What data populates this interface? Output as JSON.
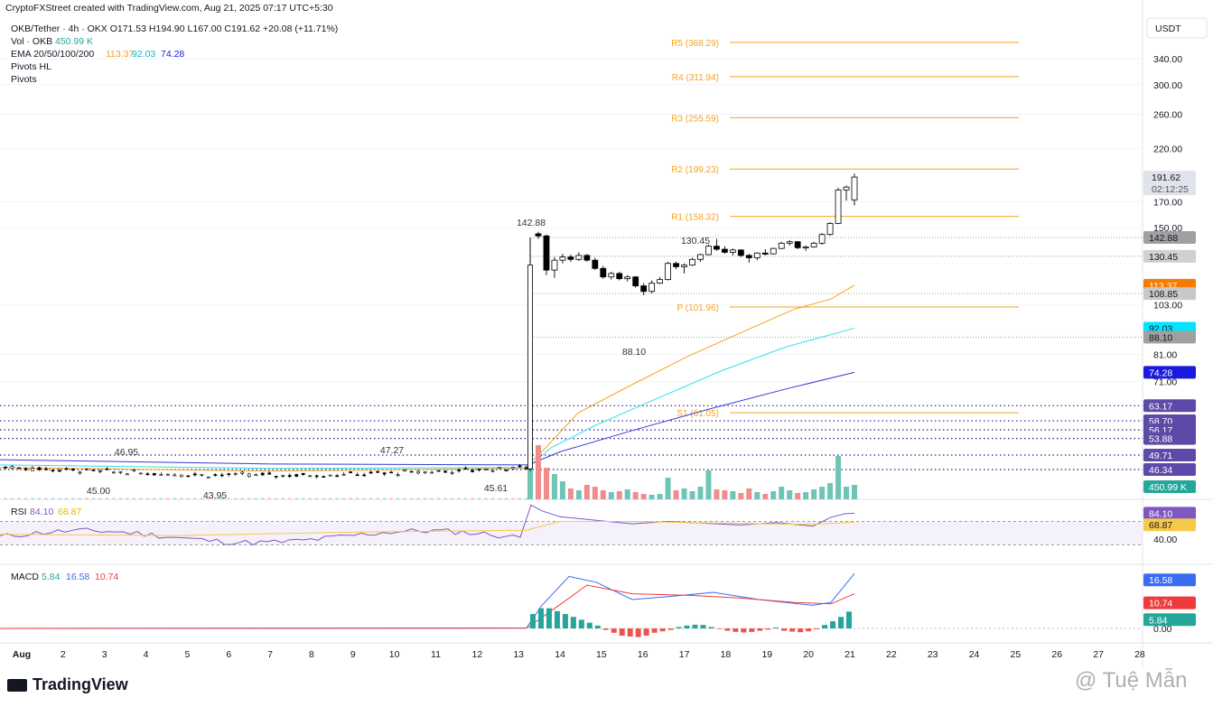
{
  "header": {
    "creator": "CryptoFXStreet created with TradingView.com, Aug 21, 2025 07:17 UTC+5:30",
    "symbol_line": "OKB/Tether · 4h · OKX  O171.53  H194.90  L167.00  C191.62  +20.08 (+11.71%)",
    "vol_label": "Vol · OKB",
    "vol_value": "450.99 K",
    "ema_label": "EMA 20/50/100/200",
    "ema_values": [
      "113.37",
      "92.03",
      "74.28"
    ],
    "pivots_hl": "Pivots HL",
    "pivots": "Pivots"
  },
  "currency": "USDT",
  "colors": {
    "up": "#ffffff",
    "down": "#000000",
    "candle_border": "#000000",
    "ema20": "#f7a21b",
    "ema50": "#2fe0f0",
    "ema100": "#3838d8",
    "pivot": "#f7a21b",
    "vol_up": "#6fc4b6",
    "vol_down": "#f08c8c",
    "rsi": "#7e57c2",
    "rsi_ma": "#f7c948",
    "macd": "#3a6cf0",
    "signal": "#ef3b3b",
    "hist_up": "#26a69a",
    "hist_down": "#ef5350",
    "level_dots": "#2a1a8c"
  },
  "chart_data": {
    "type": "candlestick",
    "price_ticks": [
      "340.00",
      "300.00",
      "260.00",
      "220.00",
      "170.00",
      "150.00",
      "103.00",
      "81.00",
      "71.00",
      "40.00"
    ],
    "pivot_levels": [
      {
        "label": "R5 (368.29)",
        "value": 368.29
      },
      {
        "label": "R4 (311.94)",
        "value": 311.94
      },
      {
        "label": "R3 (255.59)",
        "value": 255.59
      },
      {
        "label": "R2 (199.23)",
        "value": 199.23
      },
      {
        "label": "R1 (158.32)",
        "value": 158.32
      },
      {
        "label": "P (101.96)",
        "value": 101.96
      },
      {
        "label": "S1 (61.05)",
        "value": 61.05
      }
    ],
    "annotations": [
      "142.88",
      "130.45",
      "88.10",
      "46.95",
      "47.27",
      "45.00",
      "43.95",
      "45.61"
    ],
    "price_badges": [
      {
        "value": "191.62",
        "sub": "02:12:25",
        "color": "#e0e3eb",
        "text": "#131722"
      },
      {
        "value": "142.88",
        "color": "#a0a0a0",
        "text": "#131722"
      },
      {
        "value": "130.45",
        "color": "#d0d0d0",
        "text": "#131722"
      },
      {
        "value": "113.37",
        "color": "#f57c00",
        "text": "#ffffff"
      },
      {
        "value": "108.85",
        "color": "#c8c8c8",
        "text": "#131722"
      },
      {
        "value": "92.03",
        "color": "#00e5ff",
        "text": "#131722"
      },
      {
        "value": "88.10",
        "color": "#a0a0a0",
        "text": "#131722"
      },
      {
        "value": "74.28",
        "color": "#1a1adc",
        "text": "#ffffff"
      },
      {
        "value": "63.17",
        "color": "#5d4aa8",
        "text": "#ffffff"
      },
      {
        "value": "58.70",
        "color": "#5d4aa8",
        "text": "#ffffff"
      },
      {
        "value": "56.17",
        "color": "#5d4aa8",
        "text": "#ffffff"
      },
      {
        "value": "53.88",
        "color": "#5d4aa8",
        "text": "#ffffff"
      },
      {
        "value": "49.71",
        "color": "#5d4aa8",
        "text": "#ffffff"
      },
      {
        "value": "46.34",
        "color": "#5d4aa8",
        "text": "#ffffff"
      },
      {
        "value": "450.99 K",
        "color": "#26a69a",
        "text": "#ffffff"
      }
    ],
    "x_labels": [
      "Aug",
      "2",
      "3",
      "4",
      "5",
      "6",
      "7",
      "8",
      "9",
      "10",
      "11",
      "12",
      "13",
      "14",
      "15",
      "16",
      "17",
      "18",
      "19",
      "20",
      "21",
      "22",
      "23",
      "24",
      "25",
      "26",
      "27",
      "28"
    ],
    "candles": [
      [
        145.5,
        147.0,
        142.0,
        144.0
      ],
      [
        144.0,
        145.0,
        119.0,
        122.0
      ],
      [
        122.0,
        130.0,
        117.5,
        128.0
      ],
      [
        128.0,
        132.0,
        126.0,
        130.0
      ],
      [
        130.0,
        131.5,
        127.0,
        128.5
      ],
      [
        128.5,
        133.0,
        127.5,
        131.0
      ],
      [
        131.0,
        132.0,
        127.0,
        128.0
      ],
      [
        128.0,
        129.5,
        122.0,
        123.0
      ],
      [
        123.0,
        124.5,
        117.0,
        118.0
      ],
      [
        118.0,
        121.0,
        116.5,
        120.0
      ],
      [
        120.0,
        121.0,
        116.0,
        117.0
      ],
      [
        117.0,
        119.0,
        115.5,
        118.0
      ],
      [
        118.0,
        118.5,
        112.0,
        113.0
      ],
      [
        113.0,
        114.5,
        108.0,
        110.0
      ],
      [
        110.0,
        116.0,
        109.0,
        114.5
      ],
      [
        114.5,
        118.0,
        114.0,
        116.5
      ],
      [
        116.5,
        127.0,
        116.0,
        126.0
      ],
      [
        126.0,
        127.0,
        122.5,
        124.0
      ],
      [
        124.0,
        126.0,
        120.0,
        125.0
      ],
      [
        125.0,
        129.5,
        124.5,
        128.5
      ],
      [
        128.5,
        132.0,
        127.0,
        131.5
      ],
      [
        131.5,
        138.0,
        131.0,
        137.0
      ],
      [
        137.0,
        142.0,
        134.0,
        135.0
      ],
      [
        135.0,
        137.0,
        132.0,
        133.0
      ],
      [
        133.0,
        135.5,
        131.0,
        134.5
      ],
      [
        134.5,
        135.0,
        130.0,
        131.0
      ],
      [
        131.0,
        132.0,
        126.5,
        129.5
      ],
      [
        129.5,
        133.0,
        128.0,
        132.5
      ],
      [
        132.5,
        135.0,
        131.0,
        132.0
      ],
      [
        132.0,
        136.0,
        131.5,
        135.5
      ],
      [
        135.5,
        140.0,
        135.0,
        139.0
      ],
      [
        139.0,
        141.0,
        137.5,
        140.0
      ],
      [
        140.0,
        140.5,
        135.0,
        136.0
      ],
      [
        136.0,
        137.5,
        134.0,
        136.5
      ],
      [
        136.5,
        140.0,
        136.0,
        139.0
      ],
      [
        139.0,
        146.0,
        138.0,
        145.0
      ],
      [
        145.0,
        154.0,
        144.0,
        153.0
      ],
      [
        153.0,
        182.0,
        152.5,
        180.0
      ],
      [
        180.0,
        184.0,
        171.0,
        182.5
      ],
      [
        171.53,
        194.9,
        167.0,
        191.62
      ]
    ],
    "volume_series": "Vol · OKB",
    "volume_last": "450.99 K",
    "rsi": {
      "label": "RSI",
      "value": "84.10",
      "ma": "68.87",
      "ticks": [
        "84.10",
        "68.87",
        "40.00"
      ]
    },
    "macd": {
      "label": "MACD",
      "hist": "5.84",
      "macd": "16.58",
      "signal": "10.74",
      "ticks": [
        "16.58",
        "10.74",
        "5.84",
        "0.00"
      ]
    }
  },
  "footer": {
    "brand": "TradingView",
    "watermark": "@ Tuệ Mẫn"
  }
}
